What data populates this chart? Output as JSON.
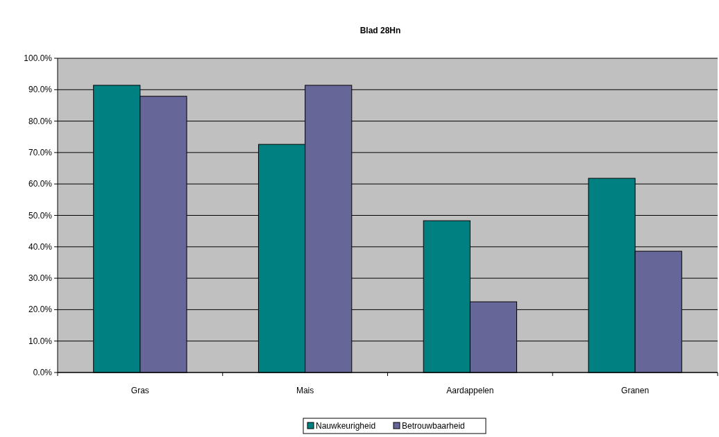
{
  "chart_data": {
    "type": "bar",
    "title": "Blad 28Hn",
    "categories": [
      "Gras",
      "Mais",
      "Aardappelen",
      "Granen"
    ],
    "series": [
      {
        "name": "Nauwkeurigheid",
        "color": "#008080",
        "values": [
          91.4,
          72.6,
          48.3,
          61.8
        ]
      },
      {
        "name": "Betrouwbaarheid",
        "color": "#666699",
        "values": [
          87.9,
          91.4,
          22.5,
          38.6
        ]
      }
    ],
    "ylim": [
      0,
      100
    ],
    "yticks": [
      {
        "value": 0,
        "label": "0.0%"
      },
      {
        "value": 10,
        "label": "10.0%"
      },
      {
        "value": 20,
        "label": "20.0%"
      },
      {
        "value": 30,
        "label": "30.0%"
      },
      {
        "value": 40,
        "label": "40.0%"
      },
      {
        "value": 50,
        "label": "50.0%"
      },
      {
        "value": 60,
        "label": "60.0%"
      },
      {
        "value": 70,
        "label": "70.0%"
      },
      {
        "value": 80,
        "label": "80.0%"
      },
      {
        "value": 90,
        "label": "90.0%"
      },
      {
        "value": 100,
        "label": "100.0%"
      }
    ],
    "grid": "y",
    "legend": "bottom"
  }
}
